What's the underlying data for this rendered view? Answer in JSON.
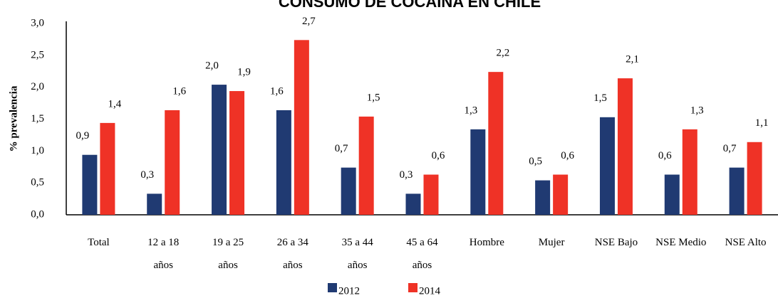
{
  "chart_data": {
    "type": "bar",
    "title": "CONSUMO DE COCAINA EN CHILE",
    "y_label": "% prevalencia",
    "categories": [
      "Total",
      "12 a 18 años",
      "19 a 25 años",
      "26 a 34 años",
      "35 a 44 años",
      "45 a 64 años",
      "Hombre",
      "Mujer",
      "NSE Bajo",
      "NSE Medio",
      "NSE Alto"
    ],
    "series": [
      {
        "name": "2012",
        "color": "#203a72",
        "values": [
          0.94,
          0.33,
          2.04,
          1.64,
          0.74,
          0.33,
          1.34,
          0.54,
          1.53,
          0.63,
          0.74
        ],
        "value_labels": [
          "0,9",
          "0,3",
          "2,0",
          "1,6",
          "0,7",
          "0,3",
          "1,3",
          "0,5",
          "1,5",
          "0,6",
          "0,7"
        ]
      },
      {
        "name": "2014",
        "color": "#ef3226",
        "values": [
          1.44,
          1.64,
          1.94,
          2.74,
          1.54,
          0.63,
          2.24,
          0.63,
          2.14,
          1.34,
          1.14
        ],
        "value_labels": [
          "1,4",
          "1,6",
          "1,9",
          "2,7",
          "1,5",
          "0,6",
          "2,2",
          "0,6",
          "2,1",
          "1,3",
          "1,1"
        ]
      }
    ],
    "ylim": [
      0,
      3
    ],
    "yticks": [
      {
        "value": 0,
        "label": "0,0"
      },
      {
        "value": 0.5,
        "label": "0,5"
      },
      {
        "value": 1,
        "label": "1,0"
      },
      {
        "value": 1.5,
        "label": "1,5"
      },
      {
        "value": 2,
        "label": "2,0"
      },
      {
        "value": 2.5,
        "label": "2,5"
      },
      {
        "value": 3,
        "label": "3,0"
      }
    ],
    "grid": false,
    "legend": "bottom"
  }
}
